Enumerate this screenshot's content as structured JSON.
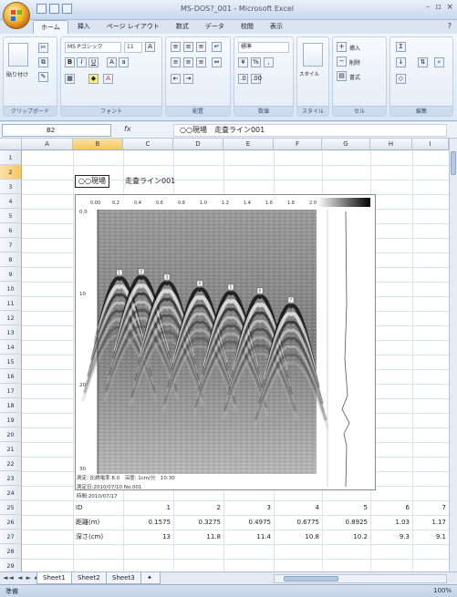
{
  "window": {
    "title": "MS-DOS?_001 - Microsoft Excel",
    "controls": [
      "–",
      "▫",
      "×"
    ]
  },
  "ribbon": {
    "tabs": [
      "ホーム",
      "挿入",
      "ページ レイアウト",
      "数式",
      "データ",
      "校閲",
      "表示"
    ],
    "active_tab": "ホーム",
    "font_name": "MS Pゴシック",
    "font_size": "11",
    "number_format": "標準",
    "groups": [
      "クリップボード",
      "フォント",
      "配置",
      "数値",
      "スタイル",
      "セル",
      "編集"
    ],
    "paste_label": "貼り付け",
    "insert_label": "挿入",
    "delete_label": "削除",
    "format_label": "書式",
    "style_label": "スタイル"
  },
  "formula_bar": {
    "name_box": "B2",
    "fx": "fx",
    "content": "○○現場　走査ライン001"
  },
  "sheet": {
    "columns": [
      "A",
      "B",
      "C",
      "D",
      "E",
      "F",
      "G",
      "H",
      "I"
    ],
    "selected_column": "B",
    "selected_row": "2",
    "rows": [
      "1",
      "2",
      "3",
      "4",
      "5",
      "6",
      "7",
      "8",
      "9",
      "10",
      "11",
      "12",
      "13",
      "14",
      "15",
      "16",
      "17",
      "18",
      "19",
      "20",
      "21",
      "22",
      "23",
      "24",
      "25",
      "26",
      "27",
      "28",
      "29"
    ],
    "caption_boxed": "○○現場",
    "caption_rest": "走査ライン001",
    "data_rows": [
      {
        "label": "ID",
        "values": [
          "1",
          "2",
          "3",
          "4",
          "5",
          "6",
          "7"
        ]
      },
      {
        "label": "距離(m)",
        "values": [
          "0.1575",
          "0.3275",
          "0.4975",
          "0.6775",
          "0.8925",
          "1.03",
          "1.17"
        ]
      },
      {
        "label": "深さ(cm)",
        "values": [
          "13",
          "11.8",
          "11.4",
          "10.8",
          "10.2",
          "9.3",
          "9.1"
        ]
      }
    ]
  },
  "figure": {
    "top_scale": [
      "0.00",
      "0.2",
      "0.4",
      "0.6",
      "0.8",
      "1.0",
      "1.2",
      "1.4",
      "1.6",
      "1.8",
      "2.0"
    ],
    "left_scale": [
      "0.0",
      "10",
      "20",
      "30"
    ],
    "markers": [
      "1",
      "2",
      "3",
      "4",
      "5",
      "6",
      "7"
    ],
    "meta_lines": [
      "測定: 比誘電率 8.0　深度: 1cm/分　10:30",
      "測定日:2010/07/10 No.001",
      "時間:2010/07/17"
    ]
  },
  "tabs": {
    "nav": "◄◄ ◄ ► ►►",
    "sheets": [
      "Sheet1",
      "Sheet2",
      "Sheet3"
    ],
    "active": "Sheet1"
  },
  "status": {
    "left": "準備",
    "right": "100%"
  }
}
